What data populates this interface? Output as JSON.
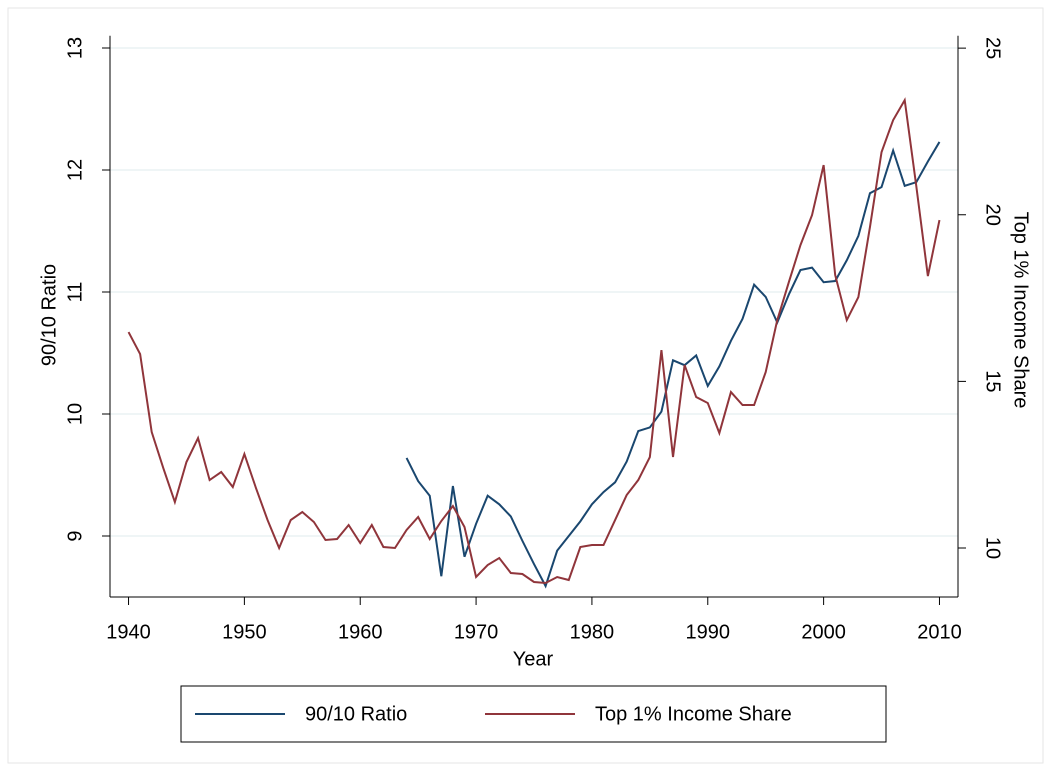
{
  "chart_data": {
    "type": "line",
    "x_label": "Year",
    "y_label": "90/10 Ratio",
    "y2_label": "Top 1% Income Share",
    "x": [
      1940,
      1941,
      1942,
      1943,
      1944,
      1945,
      1946,
      1947,
      1948,
      1949,
      1950,
      1951,
      1952,
      1953,
      1954,
      1955,
      1956,
      1957,
      1958,
      1959,
      1960,
      1961,
      1962,
      1963,
      1964,
      1965,
      1966,
      1967,
      1968,
      1969,
      1970,
      1971,
      1972,
      1973,
      1974,
      1975,
      1976,
      1977,
      1978,
      1979,
      1980,
      1981,
      1982,
      1983,
      1984,
      1985,
      1986,
      1987,
      1988,
      1989,
      1990,
      1991,
      1992,
      1993,
      1994,
      1995,
      1996,
      1997,
      1998,
      1999,
      2000,
      2001,
      2002,
      2003,
      2004,
      2005,
      2006,
      2007,
      2008,
      2009,
      2010
    ],
    "series": [
      {
        "name": "90/10 Ratio",
        "color": "#1a476f",
        "axis": "y",
        "values": [
          null,
          null,
          null,
          null,
          null,
          null,
          null,
          null,
          null,
          null,
          null,
          null,
          null,
          null,
          null,
          null,
          null,
          null,
          null,
          null,
          null,
          null,
          null,
          null,
          9.64,
          9.45,
          9.33,
          8.67,
          9.41,
          8.83,
          9.1,
          9.33,
          9.26,
          9.16,
          8.96,
          8.77,
          8.59,
          8.88,
          9.0,
          9.12,
          9.26,
          9.36,
          9.44,
          9.61,
          9.86,
          9.89,
          10.02,
          10.44,
          10.4,
          10.48,
          10.23,
          10.39,
          10.6,
          10.78,
          11.06,
          10.96,
          10.75,
          10.98,
          11.18,
          11.2,
          11.08,
          11.09,
          11.26,
          11.46,
          11.81,
          11.86,
          12.16,
          11.87,
          11.9,
          12.07,
          12.23
        ]
      },
      {
        "name": "Top 1% Income Share",
        "color": "#90353b",
        "axis": "y2",
        "values": [
          16.48,
          15.82,
          13.48,
          12.4,
          11.38,
          12.58,
          13.3,
          12.04,
          12.28,
          11.83,
          12.82,
          11.8,
          10.84,
          10.0,
          10.84,
          11.08,
          10.78,
          10.24,
          10.27,
          10.69,
          10.15,
          10.69,
          10.03,
          10.0,
          10.54,
          10.93,
          10.27,
          10.81,
          11.26,
          10.63,
          9.13,
          9.49,
          9.7,
          9.25,
          9.22,
          8.98,
          8.95,
          9.13,
          9.04,
          10.03,
          10.09,
          10.09,
          10.84,
          11.59,
          12.04,
          12.73,
          15.94,
          12.73,
          15.49,
          14.53,
          14.35,
          13.45,
          14.68,
          14.29,
          14.29,
          15.28,
          16.84,
          17.98,
          19.09,
          19.99,
          21.49,
          18.19,
          16.84,
          17.53,
          19.63,
          21.88,
          22.84,
          23.44,
          20.86,
          18.16,
          19.84
        ]
      }
    ],
    "xlim": [
      1938.4,
      2011.6
    ],
    "xticks": [
      1940,
      1950,
      1960,
      1970,
      1980,
      1990,
      2000,
      2010
    ],
    "ylim": [
      8.5,
      13.1
    ],
    "yticks": [
      9,
      10,
      11,
      12,
      13
    ],
    "y2lim": [
      8.53,
      25.37
    ],
    "y2ticks": [
      10,
      15,
      20,
      25
    ],
    "grid": true,
    "legend": "bottom"
  }
}
